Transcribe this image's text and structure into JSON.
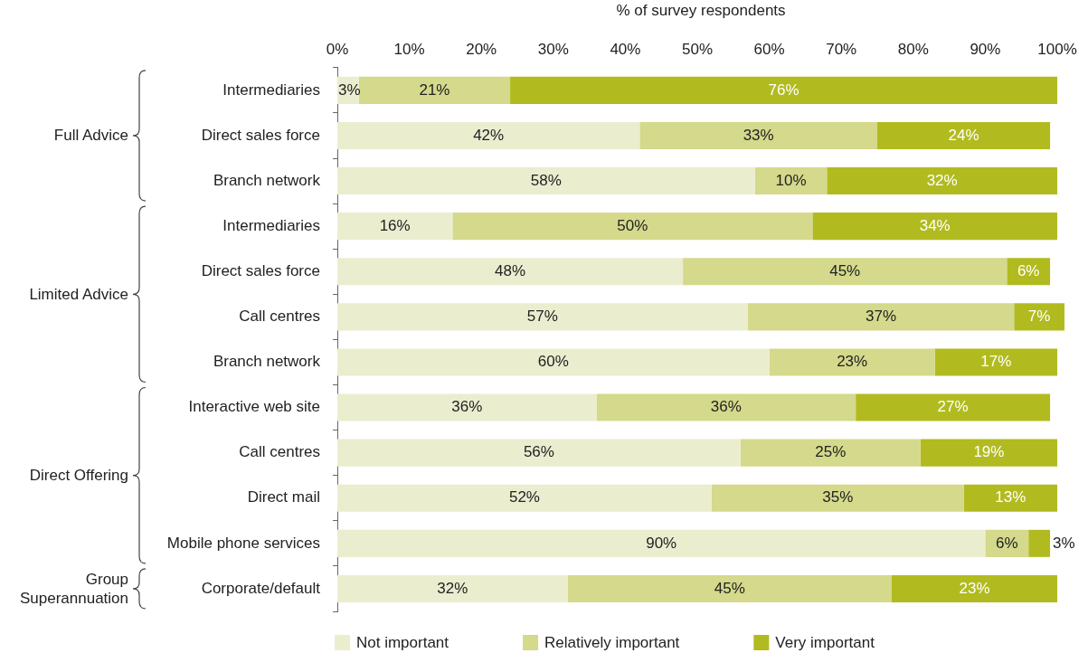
{
  "chart_data": {
    "type": "bar",
    "orientation": "horizontal",
    "stacked": true,
    "xlabel": "% of survey respondents",
    "categories": [
      "Intermediaries",
      "Direct sales force",
      "Branch network",
      "Intermediaries",
      "Direct sales force",
      "Call centres",
      "Branch network",
      "Interactive web site",
      "Call centres",
      "Direct mail",
      "Mobile phone services",
      "Corporate/default"
    ],
    "series": [
      {
        "name": "Not important",
        "color": "#ebedcf",
        "values": [
          3,
          42,
          58,
          16,
          48,
          57,
          60,
          36,
          56,
          52,
          90,
          32
        ],
        "value_labels": [
          "3%",
          "42%",
          "58%",
          "16%",
          "48%",
          "57%",
          "60%",
          "36%",
          "56%",
          "52%",
          "90%",
          "32%"
        ]
      },
      {
        "name": "Relatively important",
        "color": "#d4d98b",
        "values": [
          21,
          33,
          10,
          50,
          45,
          37,
          23,
          36,
          25,
          35,
          6,
          45
        ],
        "value_labels": [
          "21%",
          "33%",
          "10%",
          "50%",
          "45%",
          "37%",
          "23%",
          "36%",
          "25%",
          "35%",
          "6%",
          "45%"
        ]
      },
      {
        "name": "Very important",
        "color": "#b1bb1f",
        "values": [
          76,
          24,
          32,
          34,
          6,
          7,
          17,
          27,
          19,
          13,
          3,
          23
        ],
        "value_labels": [
          "76%",
          "24%",
          "32%",
          "34%",
          "6%",
          "7%",
          "17%",
          "27%",
          "19%",
          "13%",
          "3%",
          "23%"
        ]
      }
    ],
    "xlim": [
      0,
      101
    ],
    "xticks": [
      {
        "value": 0,
        "label": "0%"
      },
      {
        "value": 10,
        "label": "10%"
      },
      {
        "value": 20,
        "label": "20%"
      },
      {
        "value": 30,
        "label": "30%"
      },
      {
        "value": 40,
        "label": "40%"
      },
      {
        "value": 50,
        "label": "50%"
      },
      {
        "value": 60,
        "label": "60%"
      },
      {
        "value": 70,
        "label": "70%"
      },
      {
        "value": 80,
        "label": "80%"
      },
      {
        "value": 90,
        "label": "90%"
      },
      {
        "value": 100,
        "label": "100%"
      }
    ],
    "annotations": [
      "Full Advice",
      "Limited Advice",
      "Direct Offering",
      "Group Superannuation"
    ],
    "grid": false,
    "legend": "bottom"
  }
}
